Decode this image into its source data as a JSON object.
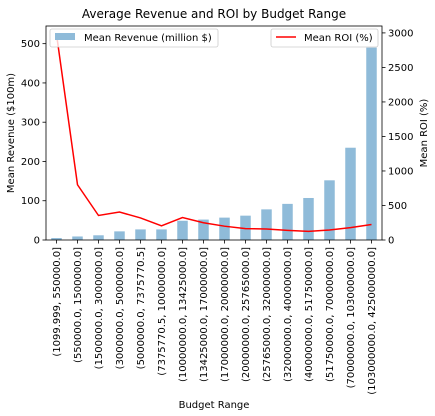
{
  "chart_data": {
    "type": "bar+line",
    "title": "Average Revenue and ROI by Budget Range",
    "xlabel": "Budget Range",
    "ylabel_left": "Mean Revenue ($100m)",
    "ylabel_right": "Mean ROI (%)",
    "categories": [
      "(1099.999, 550000.0]",
      "(550000.0, 1500000.0]",
      "(1500000.0, 3000000.0]",
      "(3000000.0, 5000000.0]",
      "(5000000.0, 7375770.5]",
      "(7375770.5, 10000000.0]",
      "(10000000.0, 13425000.0]",
      "(13425000.0, 17000000.0]",
      "(17000000.0, 20000000.0]",
      "(20000000.0, 25765000.0]",
      "(25765000.0, 32000000.0]",
      "(32000000.0, 40000000.0]",
      "(40000000.0, 51750000.0]",
      "(51750000.0, 70000000.0]",
      "(70000000.0, 103000000.0]",
      "(103000000.0, 425000000.0]"
    ],
    "series": [
      {
        "name": "Mean Revenue (million $)",
        "type": "bar",
        "axis": "left",
        "color": "#8fbbd9",
        "values": [
          5,
          9,
          12,
          22,
          27,
          27,
          49,
          52,
          57,
          62,
          78,
          92,
          107,
          152,
          235,
          490
        ]
      },
      {
        "name": "Mean ROI (%)",
        "type": "line",
        "axis": "right",
        "color": "#ff0000",
        "values": [
          2980,
          800,
          355,
          405,
          320,
          205,
          325,
          250,
          200,
          165,
          160,
          140,
          125,
          145,
          180,
          225
        ]
      }
    ],
    "ylim_left": [
      0,
      545
    ],
    "ylim_right": [
      0,
      3100
    ],
    "yticks_left": [
      "0",
      "100",
      "200",
      "300",
      "400",
      "500"
    ],
    "yticks_right": [
      "0",
      "500",
      "1000",
      "1500",
      "2000",
      "2500",
      "3000"
    ],
    "legend_left": "upper-left",
    "legend_right": "upper-right",
    "grid": false
  }
}
